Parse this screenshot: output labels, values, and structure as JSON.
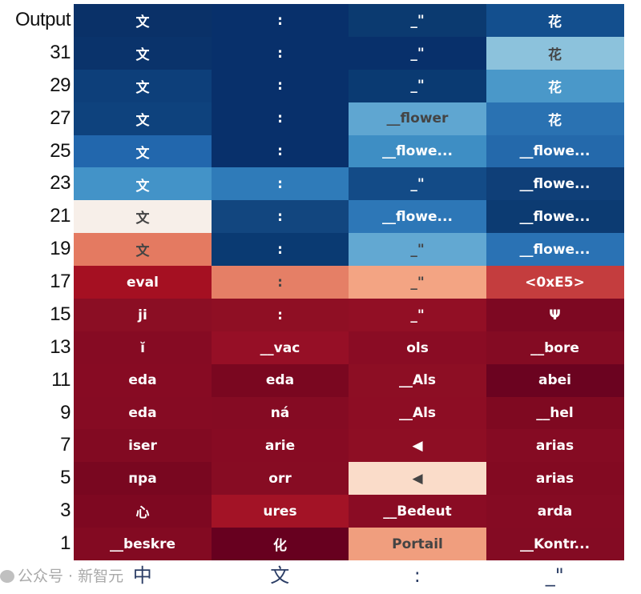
{
  "chart_data": {
    "type": "heatmap",
    "title": "",
    "xlabel": "",
    "ylabel": "",
    "x_tick_labels": [
      "中",
      "文",
      ":",
      "_\""
    ],
    "rows": [
      {
        "label": "Output",
        "cells": [
          {
            "token": "文",
            "color": "#0a3168"
          },
          {
            "token": ":",
            "color": "#08306b"
          },
          {
            "token": "_\"",
            "color": "#0b3a70"
          },
          {
            "token": "花",
            "color": "#134f8e"
          }
        ]
      },
      {
        "label": "31",
        "cells": [
          {
            "token": "文",
            "color": "#0a336b"
          },
          {
            "token": ":",
            "color": "#08306b"
          },
          {
            "token": "_\"",
            "color": "#08306b"
          },
          {
            "token": "花",
            "color": "#8cc2dc"
          }
        ]
      },
      {
        "label": "29",
        "cells": [
          {
            "token": "文",
            "color": "#0d3f7a"
          },
          {
            "token": ":",
            "color": "#08306b"
          },
          {
            "token": "_\"",
            "color": "#0a3a72"
          },
          {
            "token": "花",
            "color": "#4a98c9"
          }
        ]
      },
      {
        "label": "27",
        "cells": [
          {
            "token": "文",
            "color": "#0e427d"
          },
          {
            "token": ":",
            "color": "#08306b"
          },
          {
            "token": "__flower",
            "color": "#5fa6d1"
          },
          {
            "token": "花",
            "color": "#2a72b2"
          }
        ]
      },
      {
        "label": "25",
        "cells": [
          {
            "token": "文",
            "color": "#2267ad"
          },
          {
            "token": ":",
            "color": "#08306b"
          },
          {
            "token": "__flowe...",
            "color": "#3e8ec4"
          },
          {
            "token": "__flowe...",
            "color": "#2469ab"
          }
        ]
      },
      {
        "label": "23",
        "cells": [
          {
            "token": "文",
            "color": "#4393c8"
          },
          {
            "token": ":",
            "color": "#2f7bb9"
          },
          {
            "token": "_\"",
            "color": "#134b87"
          },
          {
            "token": "__flowe...",
            "color": "#0f3f78"
          }
        ]
      },
      {
        "label": "21",
        "cells": [
          {
            "token": "文",
            "color": "#f7efe9"
          },
          {
            "token": ":",
            "color": "#12467f"
          },
          {
            "token": "__flowe...",
            "color": "#2d77b7"
          },
          {
            "token": "__flowe...",
            "color": "#0c3b72"
          }
        ]
      },
      {
        "label": "19",
        "cells": [
          {
            "token": "文",
            "color": "#e47a61"
          },
          {
            "token": ":",
            "color": "#0a3a72"
          },
          {
            "token": "_\"",
            "color": "#62a8d2"
          },
          {
            "token": "__flowe...",
            "color": "#2a72b4"
          }
        ]
      },
      {
        "label": "17",
        "cells": [
          {
            "token": "eval",
            "color": "#a51022"
          },
          {
            "token": ":",
            "color": "#e57f66"
          },
          {
            "token": "_\"",
            "color": "#f3a483"
          },
          {
            "token": "<0xE5>",
            "color": "#c43d3e"
          }
        ]
      },
      {
        "label": "15",
        "cells": [
          {
            "token": "ji",
            "color": "#8b0e24"
          },
          {
            "token": ":",
            "color": "#8f0f24"
          },
          {
            "token": "_\"",
            "color": "#920f25"
          },
          {
            "token": "Ψ",
            "color": "#7d0822"
          }
        ]
      },
      {
        "label": "13",
        "cells": [
          {
            "token": "ĭ",
            "color": "#860b23"
          },
          {
            "token": "__vac",
            "color": "#960f26"
          },
          {
            "token": "ols",
            "color": "#8a0c24"
          },
          {
            "token": "__bore",
            "color": "#840b23"
          }
        ]
      },
      {
        "label": "11",
        "cells": [
          {
            "token": "eda",
            "color": "#870b23"
          },
          {
            "token": "eda",
            "color": "#7a0720"
          },
          {
            "token": "__Als",
            "color": "#8d0e24"
          },
          {
            "token": "abei",
            "color": "#6b0320"
          }
        ]
      },
      {
        "label": "9",
        "cells": [
          {
            "token": "eda",
            "color": "#860b23"
          },
          {
            "token": "ná",
            "color": "#850b23"
          },
          {
            "token": "__Als",
            "color": "#8d0d24"
          },
          {
            "token": "__hel",
            "color": "#7f0921"
          }
        ]
      },
      {
        "label": "7",
        "cells": [
          {
            "token": "iser",
            "color": "#820a22"
          },
          {
            "token": "arie",
            "color": "#870b23"
          },
          {
            "token": "◀",
            "color": "#8e0e24"
          },
          {
            "token": "arias",
            "color": "#850b23"
          }
        ]
      },
      {
        "label": "5",
        "cells": [
          {
            "token": "пpa",
            "color": "#790720"
          },
          {
            "token": "orr",
            "color": "#870c23"
          },
          {
            "token": "◀",
            "color": "#fadcc9"
          },
          {
            "token": "arias",
            "color": "#830a22"
          }
        ]
      },
      {
        "label": "3",
        "cells": [
          {
            "token": "心",
            "color": "#7e0821"
          },
          {
            "token": "ures",
            "color": "#a31326"
          },
          {
            "token": "__Bedeut",
            "color": "#8a0c24"
          },
          {
            "token": "arda",
            "color": "#850b23"
          }
        ]
      },
      {
        "label": "1",
        "cells": [
          {
            "token": "__beskre",
            "color": "#830a22"
          },
          {
            "token": "化",
            "color": "#67001f"
          },
          {
            "token": "Portail",
            "color": "#f09e7e"
          },
          {
            "token": "__Kontr...",
            "color": "#840b23"
          }
        ]
      }
    ],
    "colormap": "RdBu",
    "grid": false
  },
  "watermark": "公众号 · 新智元"
}
